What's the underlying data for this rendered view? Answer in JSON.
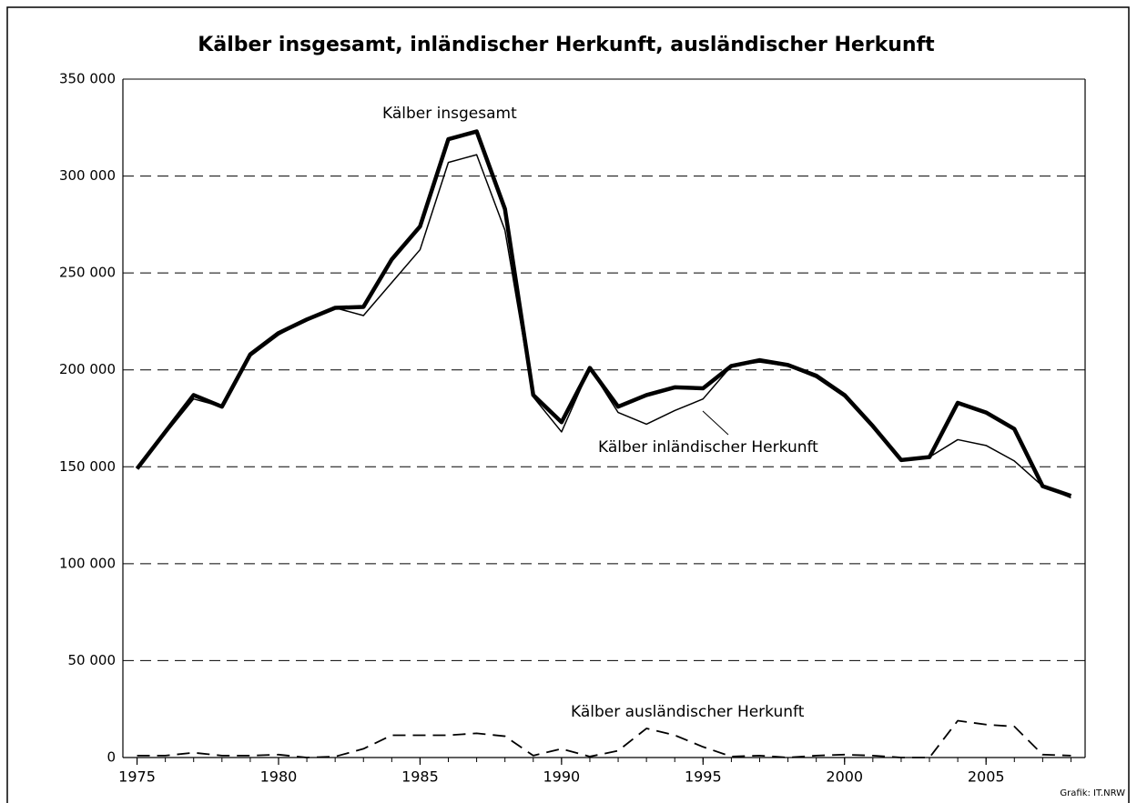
{
  "chart_data": {
    "type": "line",
    "title": "Kälber insgesamt, inländischer Herkunft, ausländischer Herkunft",
    "source": "Grafik: IT.NRW",
    "x": [
      1975,
      1976,
      1977,
      1978,
      1979,
      1980,
      1981,
      1982,
      1983,
      1984,
      1985,
      1986,
      1987,
      1988,
      1989,
      1990,
      1991,
      1992,
      1993,
      1994,
      1995,
      1996,
      1997,
      1998,
      1999,
      2000,
      2001,
      2002,
      2003,
      2004,
      2005,
      2006,
      2007,
      2008
    ],
    "series": [
      {
        "name": "Kälber insgesamt",
        "color": "#000000",
        "values": [
          149000,
          168000,
          187000,
          181000,
          208000,
          219000,
          226000,
          232000,
          232500,
          257000,
          274000,
          319000,
          323000,
          283000,
          187000,
          173000,
          201000,
          181000,
          187000,
          191000,
          190500,
          202000,
          205000,
          202500,
          197000,
          187000,
          171000,
          153500,
          155000,
          183000,
          178000,
          169500,
          140000,
          135000
        ]
      },
      {
        "name": "Kälber inländischer Herkunft",
        "color": "#000000",
        "values": [
          149000,
          167000,
          185000,
          181000,
          207000,
          218000,
          226000,
          232000,
          228000,
          245000,
          262000,
          307000,
          311000,
          272000,
          186000,
          168000,
          201000,
          178000,
          172000,
          179000,
          185000,
          202000,
          204000,
          202000,
          196000,
          186000,
          170000,
          153000,
          155000,
          164000,
          161000,
          153000,
          140000,
          134000
        ]
      },
      {
        "name": "Kälber ausländischer Herkunft",
        "color": "#000000",
        "values": [
          1000,
          1000,
          2500,
          1000,
          1000,
          1500,
          0,
          500,
          4500,
          11500,
          11500,
          11500,
          12500,
          11000,
          1000,
          4500,
          500,
          3500,
          15000,
          11500,
          5500,
          500,
          1000,
          0,
          1000,
          1500,
          1000,
          0,
          0,
          19000,
          17000,
          16000,
          1500,
          1000
        ]
      }
    ],
    "xlim": [
      1974.5,
      2008.5
    ],
    "xticks": [
      1975,
      1980,
      1985,
      1990,
      1995,
      2000,
      2005
    ],
    "ylim": [
      0,
      350000
    ],
    "yticks": [
      0,
      {
        "value": 50000,
        "label": "50 000"
      },
      {
        "value": 100000,
        "label": "100 000"
      },
      {
        "value": 150000,
        "label": "150 000"
      },
      {
        "value": 200000,
        "label": "200 000"
      },
      {
        "value": 250000,
        "label": "250 000"
      },
      {
        "value": 300000,
        "label": "300 000"
      },
      {
        "value": 350000,
        "label": "350 000"
      }
    ],
    "grid": true
  }
}
